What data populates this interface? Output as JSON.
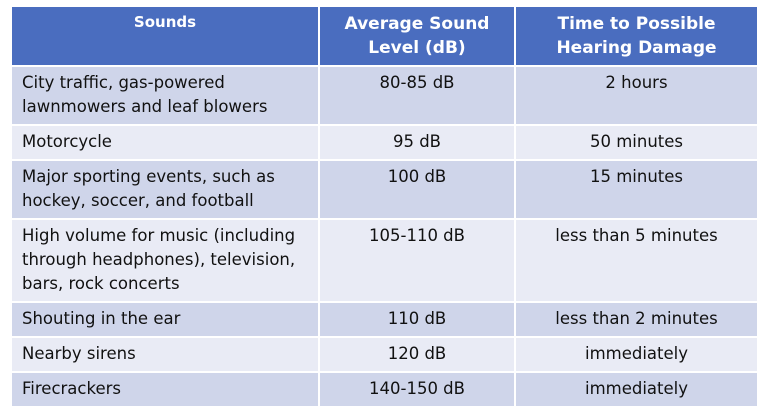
{
  "table": {
    "header": [
      "Sounds",
      "Average Sound Level (dB)",
      "Time to Possible Hearing Damage"
    ],
    "rows": [
      [
        "City traffic, gas-powered lawnmowers and leaf blowers",
        "80-85 dB",
        "2 hours"
      ],
      [
        "Motorcycle",
        "95 dB",
        "50 minutes"
      ],
      [
        "Major sporting events, such as hockey, soccer, and football",
        "100 dB",
        "15 minutes"
      ],
      [
        "High volume for music (including through headphones), television, bars, rock concerts",
        "105-110 dB",
        "less than 5 minutes"
      ],
      [
        "Shouting in the ear",
        "110 dB",
        "less than 2 minutes"
      ],
      [
        "Nearby sirens",
        "120 dB",
        "immediately"
      ],
      [
        "Firecrackers",
        "140-150 dB",
        "immediately"
      ]
    ]
  }
}
